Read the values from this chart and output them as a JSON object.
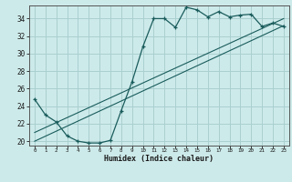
{
  "xlabel": "Humidex (Indice chaleur)",
  "bg_color": "#cdeaea",
  "grid_color": "#aacfcf",
  "line_color": "#1a5c5c",
  "xlim": [
    -0.5,
    23.5
  ],
  "ylim": [
    19.5,
    35.5
  ],
  "yticks": [
    20,
    22,
    24,
    26,
    28,
    30,
    32,
    34
  ],
  "xticks": [
    0,
    1,
    2,
    3,
    4,
    5,
    6,
    7,
    8,
    9,
    10,
    11,
    12,
    13,
    14,
    15,
    16,
    17,
    18,
    19,
    20,
    21,
    22,
    23
  ],
  "main_x": [
    0,
    1,
    2,
    3,
    4,
    5,
    6,
    7,
    8,
    9,
    10,
    11,
    12,
    13,
    14,
    15,
    16,
    17,
    18,
    19,
    20,
    21,
    22,
    23
  ],
  "main_y": [
    24.8,
    23.0,
    22.2,
    20.6,
    20.0,
    19.8,
    19.8,
    20.1,
    23.5,
    26.8,
    30.8,
    34.0,
    34.0,
    33.0,
    35.3,
    35.0,
    34.2,
    34.8,
    34.2,
    34.4,
    34.5,
    33.1,
    33.5,
    33.1
  ],
  "ref_line1_x": [
    0,
    23
  ],
  "ref_line1_y": [
    20.0,
    33.2
  ],
  "ref_line2_x": [
    0,
    23
  ],
  "ref_line2_y": [
    21.0,
    34.0
  ]
}
